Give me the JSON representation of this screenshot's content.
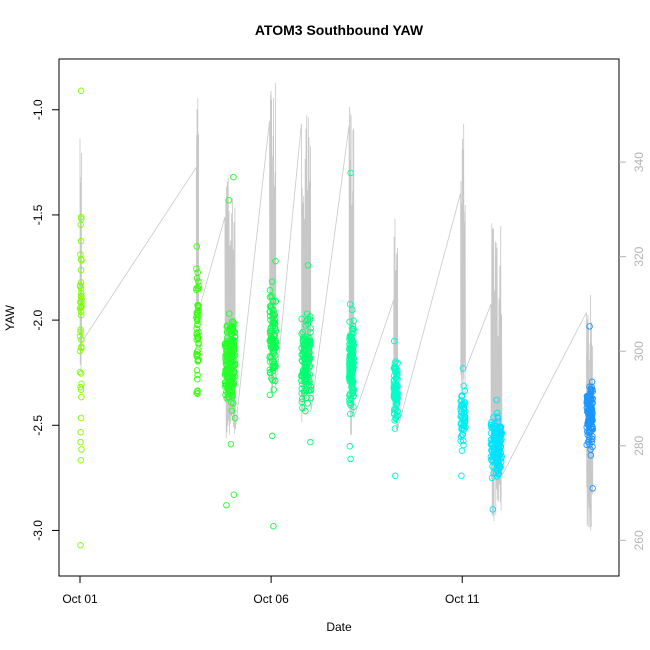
{
  "chart_data": {
    "type": "scatter",
    "title": "ATOM3 Southbound YAW",
    "xlabel": "Date",
    "ylabel": "YAW",
    "x_ticks": [
      "Oct 01",
      "Oct 06",
      "Oct 11"
    ],
    "xlim": [
      "2023-10-01T00:00",
      "2023-10-14T12:00"
    ],
    "ylim_left": [
      -3.15,
      -0.83
    ],
    "ylim_right": [
      255,
      358
    ],
    "y_ticks_left": [
      -1.0,
      -1.5,
      -2.0,
      -2.5,
      -3.0
    ],
    "y_ticks_right": [
      260,
      280,
      300,
      320,
      340
    ],
    "grid": false,
    "colors": {
      "line": "#c8c8c8",
      "right_axis": "#b4b4b4",
      "scale": [
        "#7fff00",
        "#40ff00",
        "#00ff5a",
        "#00ffc8",
        "#00e6ff",
        "#1e90ff"
      ]
    },
    "series": [
      {
        "date": "2023-10-01",
        "t_start": "2023-10-01T00:00",
        "t_end": "2023-10-01T01:00",
        "y_center": -2.05,
        "y_spread": 0.45,
        "n": 40,
        "outliers": [
          -0.91,
          -3.07,
          -1.51,
          -2.58
        ],
        "line_top": 345,
        "line_bottom": 295
      },
      {
        "date": "2023-10-04",
        "t_start": "2023-10-04T01:00",
        "t_end": "2023-10-04T02:30",
        "y_center": -2.05,
        "y_spread": 0.28,
        "n": 55,
        "outliers": [
          -1.65,
          -2.35
        ],
        "line_top": 355,
        "line_bottom": 305
      },
      {
        "date": "2023-10-05a",
        "t_start": "2023-10-04T19:00",
        "t_end": "2023-10-05T01:30",
        "y_center": -2.2,
        "y_spread": 0.2,
        "n": 180,
        "outliers": [
          -1.32,
          -1.43,
          -2.83,
          -2.88,
          -2.59
        ],
        "line_top": 345,
        "line_bottom": 280
      },
      {
        "date": "2023-10-06",
        "t_start": "2023-10-05T23:00",
        "t_end": "2023-10-06T03:00",
        "y_center": -2.1,
        "y_spread": 0.22,
        "n": 90,
        "outliers": [
          -1.72,
          -2.55,
          -2.98
        ],
        "line_top": 357,
        "line_bottom": 290
      },
      {
        "date": "2023-10-07",
        "t_start": "2023-10-06T19:00",
        "t_end": "2023-10-07T01:00",
        "y_center": -2.2,
        "y_spread": 0.2,
        "n": 130,
        "outliers": [
          -1.74,
          -2.58
        ],
        "line_top": 350,
        "line_bottom": 285
      },
      {
        "date": "2023-10-08",
        "t_start": "2023-10-08T01:00",
        "t_end": "2023-10-08T04:00",
        "y_center": -2.2,
        "y_spread": 0.2,
        "n": 130,
        "outliers": [
          -1.3,
          -2.66,
          -2.6
        ],
        "line_top": 353,
        "line_bottom": 282
      },
      {
        "date": "2023-10-09",
        "t_start": "2023-10-09T05:00",
        "t_end": "2023-10-09T07:30",
        "y_center": -2.35,
        "y_spread": 0.15,
        "n": 80,
        "outliers": [
          -2.74,
          -2.1
        ],
        "line_top": 333,
        "line_bottom": 282
      },
      {
        "date": "2023-10-11",
        "t_start": "2023-10-10T23:00",
        "t_end": "2023-10-11T02:00",
        "y_center": -2.45,
        "y_spread": 0.14,
        "n": 60,
        "outliers": [
          -2.23,
          -2.74
        ],
        "line_top": 350,
        "line_bottom": 290
      },
      {
        "date": "2023-10-12",
        "t_start": "2023-10-11T18:00",
        "t_end": "2023-10-12T01:00",
        "y_center": -2.6,
        "y_spread": 0.13,
        "n": 140,
        "outliers": [
          -2.38,
          -2.9,
          -2.75
        ],
        "line_top": 328,
        "line_bottom": 264
      },
      {
        "date": "2023-10-14",
        "t_start": "2023-10-14T06:00",
        "t_end": "2023-10-14T10:00",
        "y_center": -2.45,
        "y_spread": 0.16,
        "n": 120,
        "outliers": [
          -2.03,
          -2.8
        ],
        "line_top": 312,
        "line_bottom": 262
      }
    ]
  }
}
